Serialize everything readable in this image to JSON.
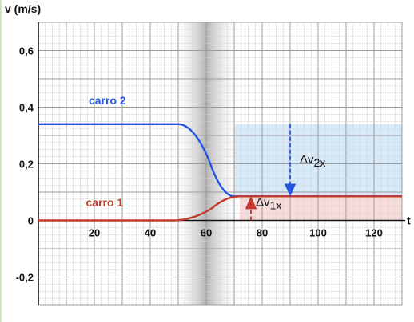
{
  "chart_data": {
    "type": "line",
    "ylabel": "v (m/s)",
    "xlabel": "t",
    "xlim": [
      0,
      130
    ],
    "ylim": [
      -0.3,
      0.7
    ],
    "x_ticks": [
      {
        "value": 20,
        "label": "20"
      },
      {
        "value": 40,
        "label": "40"
      },
      {
        "value": 60,
        "label": "60"
      },
      {
        "value": 80,
        "label": "80"
      },
      {
        "value": 100,
        "label": "100"
      },
      {
        "value": 120,
        "label": "120"
      }
    ],
    "y_ticks": [
      {
        "value": 0.6,
        "label": "0,6"
      },
      {
        "value": 0.4,
        "label": "0,4"
      },
      {
        "value": 0.2,
        "label": "0,2"
      },
      {
        "value": 0,
        "label": "0"
      },
      {
        "value": -0.2,
        "label": "-0,2"
      }
    ],
    "grid": true,
    "collision_band": {
      "x_start": 50,
      "x_end": 70
    },
    "series": [
      {
        "name": "carro 2",
        "color": "#2456e6",
        "initial_velocity": 0.34,
        "final_velocity": 0.085,
        "transition": {
          "start": 50,
          "center": 61,
          "end": 70
        },
        "label_position": {
          "x": 18,
          "y": 0.41
        }
      },
      {
        "name": "carro 1",
        "color": "#c0392b",
        "initial_velocity": 0.0,
        "final_velocity": 0.085,
        "transition": {
          "start": 48,
          "center": 62,
          "end": 72
        },
        "label_position": {
          "x": 17,
          "y": 0.05
        }
      }
    ],
    "annotations": [
      {
        "label": "Δv",
        "subscript": "2x",
        "color": "#2456e6",
        "x": 90,
        "y_from": 0.34,
        "y_to": 0.085,
        "region": {
          "x_start": 70,
          "x_end": 130,
          "y_bottom": 0.085,
          "y_top": 0.34,
          "fill": "#d6e9f8"
        }
      },
      {
        "label": "Δv",
        "subscript": "1x",
        "color": "#c0392b",
        "x": 76,
        "y_from": 0.0,
        "y_to": 0.085,
        "region": {
          "x_start": 72,
          "x_end": 130,
          "y_bottom": 0.0,
          "y_top": 0.085,
          "fill": "#f8dcdc"
        }
      }
    ]
  }
}
